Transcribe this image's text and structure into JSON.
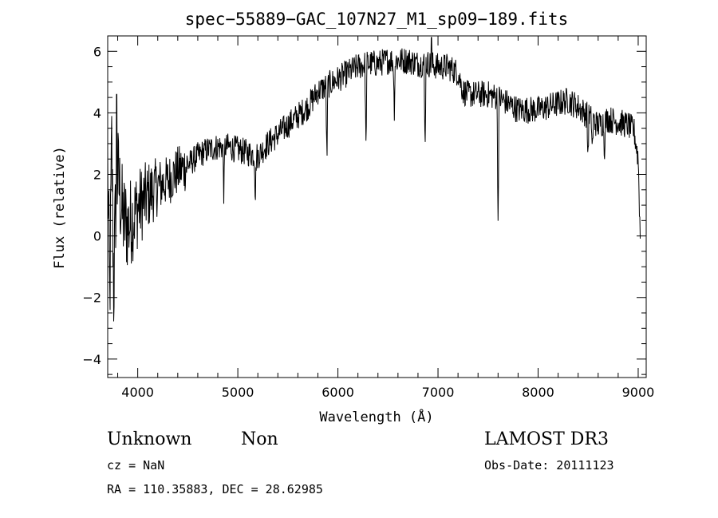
{
  "chart_data": {
    "type": "line",
    "title": "spec−55889−GAC_107N27_M1_sp09−189.fits",
    "xlabel": "Wavelength (Å)",
    "ylabel": "Flux (relative)",
    "xlim": [
      3700,
      9080
    ],
    "ylim": [
      -4.6,
      6.5
    ],
    "x_ticks": [
      4000,
      5000,
      6000,
      7000,
      8000,
      9000
    ],
    "x_tick_labels": [
      "4000",
      "5000",
      "6000",
      "7000",
      "8000",
      "9000"
    ],
    "y_ticks": [
      -4,
      -2,
      0,
      2,
      4,
      6
    ],
    "y_tick_labels": [
      "−4",
      "−2",
      "0",
      "2",
      "4",
      "6"
    ],
    "series": [
      {
        "name": "flux",
        "color": "#000000",
        "continuum": [
          [
            3700,
            2.2
          ],
          [
            3720,
            -2.2
          ],
          [
            3740,
            3.0
          ],
          [
            3760,
            -1.8
          ],
          [
            3780,
            1.0
          ],
          [
            3800,
            2.0
          ],
          [
            3850,
            0.6
          ],
          [
            3900,
            0.3
          ],
          [
            4000,
            0.9
          ],
          [
            4100,
            1.3
          ],
          [
            4200,
            1.6
          ],
          [
            4300,
            1.8
          ],
          [
            4400,
            2.1
          ],
          [
            4500,
            2.3
          ],
          [
            4600,
            2.6
          ],
          [
            4700,
            2.8
          ],
          [
            4800,
            2.9
          ],
          [
            4900,
            2.9
          ],
          [
            5000,
            2.8
          ],
          [
            5100,
            2.7
          ],
          [
            5200,
            2.6
          ],
          [
            5300,
            3.0
          ],
          [
            5400,
            3.3
          ],
          [
            5500,
            3.6
          ],
          [
            5600,
            3.9
          ],
          [
            5700,
            4.2
          ],
          [
            5800,
            4.7
          ],
          [
            5900,
            4.9
          ],
          [
            6000,
            5.1
          ],
          [
            6100,
            5.3
          ],
          [
            6200,
            5.5
          ],
          [
            6300,
            5.6
          ],
          [
            6400,
            5.6
          ],
          [
            6500,
            5.7
          ],
          [
            6600,
            5.7
          ],
          [
            6700,
            5.7
          ],
          [
            6800,
            5.6
          ],
          [
            6900,
            5.6
          ],
          [
            7000,
            5.5
          ],
          [
            7100,
            5.5
          ],
          [
            7200,
            5.3
          ],
          [
            7250,
            4.7
          ],
          [
            7300,
            4.6
          ],
          [
            7400,
            4.6
          ],
          [
            7500,
            4.6
          ],
          [
            7600,
            4.5
          ],
          [
            7700,
            4.3
          ],
          [
            7800,
            4.1
          ],
          [
            7900,
            4.1
          ],
          [
            8000,
            4.1
          ],
          [
            8100,
            4.2
          ],
          [
            8200,
            4.3
          ],
          [
            8300,
            4.4
          ],
          [
            8400,
            4.2
          ],
          [
            8500,
            3.9
          ],
          [
            8600,
            3.6
          ],
          [
            8700,
            3.8
          ],
          [
            8800,
            3.7
          ],
          [
            8900,
            3.6
          ],
          [
            8960,
            3.4
          ],
          [
            9000,
            2.5
          ],
          [
            9020,
            0.0
          ]
        ],
        "absorption_lines": [
          [
            4861,
            -1.6
          ],
          [
            5175,
            -1.4
          ],
          [
            5890,
            -2.6
          ],
          [
            6280,
            -2.8
          ],
          [
            6563,
            -1.7
          ],
          [
            6870,
            -2.9
          ],
          [
            7600,
            -4.1
          ],
          [
            8498,
            -1.4
          ],
          [
            8542,
            -1.0
          ],
          [
            8662,
            -1.0
          ]
        ],
        "spikes": [
          [
            3790,
            4.6
          ],
          [
            6935,
            6.45
          ]
        ],
        "noise_amplitude_blue": 1.6,
        "noise_amplitude_red": 0.45
      }
    ]
  },
  "annotations": {
    "object_class": "Unknown",
    "subclass": "Non",
    "survey": "LAMOST DR3",
    "redshift": "cz = NaN",
    "obs_date": "Obs-Date: 20111123",
    "coords": "RA = 110.35883, DEC =  28.62985"
  }
}
